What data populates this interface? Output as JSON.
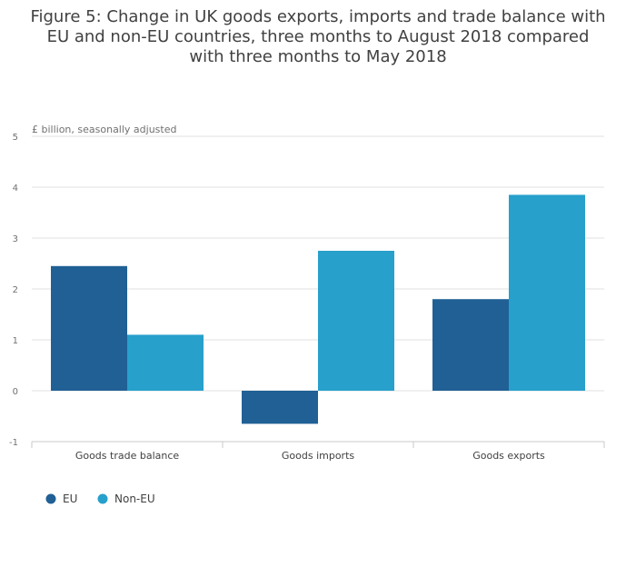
{
  "chart_data": {
    "type": "bar",
    "title": "Figure 5: Change in UK goods exports, imports and trade balance with EU and non-EU countries, three months to August 2018 compared with three months to May 2018",
    "ylabel": "£ billion, seasonally adjusted",
    "xlabel": "",
    "categories": [
      "Goods trade balance",
      "Goods imports",
      "Goods exports"
    ],
    "series": [
      {
        "name": "EU",
        "values": [
          2.45,
          -0.65,
          1.8
        ],
        "color": "#206095"
      },
      {
        "name": "Non-EU",
        "values": [
          1.1,
          2.75,
          3.85
        ],
        "color": "#27a0cc"
      }
    ],
    "ylim": [
      -1,
      5
    ],
    "yticks": [
      -1,
      0,
      1,
      2,
      3,
      4,
      5
    ],
    "grid": true,
    "legend_position": "bottom-left"
  }
}
